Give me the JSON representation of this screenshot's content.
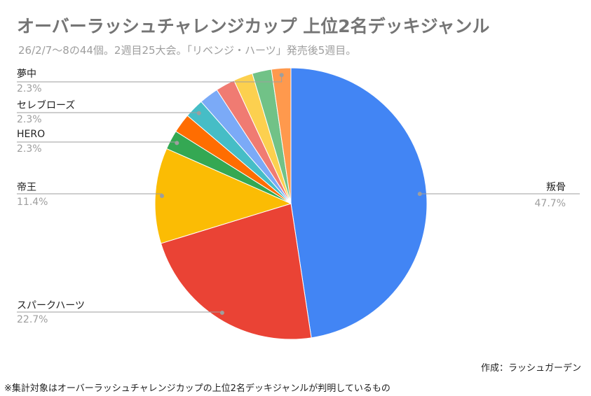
{
  "chart_data": {
    "type": "pie",
    "title": "オーバーラッシュチャレンジカップ 上位2名デッキジャンル",
    "subtitle": "26/2/7〜8の44個。2週目25大会。「リベンジ・ハーツ」発売後5週目。",
    "slices": [
      {
        "name": "叛骨",
        "pct_label": "47.7%",
        "value": 47.7,
        "color": "#4285f4",
        "labeled": true
      },
      {
        "name": "スパークハーツ",
        "pct_label": "22.7%",
        "value": 22.7,
        "color": "#ea4335",
        "labeled": true
      },
      {
        "name": "帝王",
        "pct_label": "11.4%",
        "value": 11.4,
        "color": "#fbbc04",
        "labeled": true
      },
      {
        "name": "HERO",
        "pct_label": "2.3%",
        "value": 2.3,
        "color": "#34a853",
        "labeled": true
      },
      {
        "name": "",
        "pct_label": "",
        "value": 2.3,
        "color": "#ff6d01",
        "labeled": false
      },
      {
        "name": "セレブローズ",
        "pct_label": "2.3%",
        "value": 2.3,
        "color": "#46bdc6",
        "labeled": true
      },
      {
        "name": "",
        "pct_label": "",
        "value": 2.3,
        "color": "#7baaf7",
        "labeled": false
      },
      {
        "name": "",
        "pct_label": "",
        "value": 2.3,
        "color": "#f07b72",
        "labeled": false
      },
      {
        "name": "",
        "pct_label": "",
        "value": 2.3,
        "color": "#fcd04f",
        "labeled": false
      },
      {
        "name": "",
        "pct_label": "",
        "value": 2.3,
        "color": "#71c287",
        "labeled": false
      },
      {
        "name": "夢中",
        "pct_label": "2.3%",
        "value": 2.3,
        "color": "#ff994d",
        "labeled": true
      }
    ]
  },
  "credit": "作成：ラッシュガーデン",
  "footnote": "※集計対象はオーバーラッシュチャレンジカップの上位2名デッキジャンルが判明しているもの"
}
